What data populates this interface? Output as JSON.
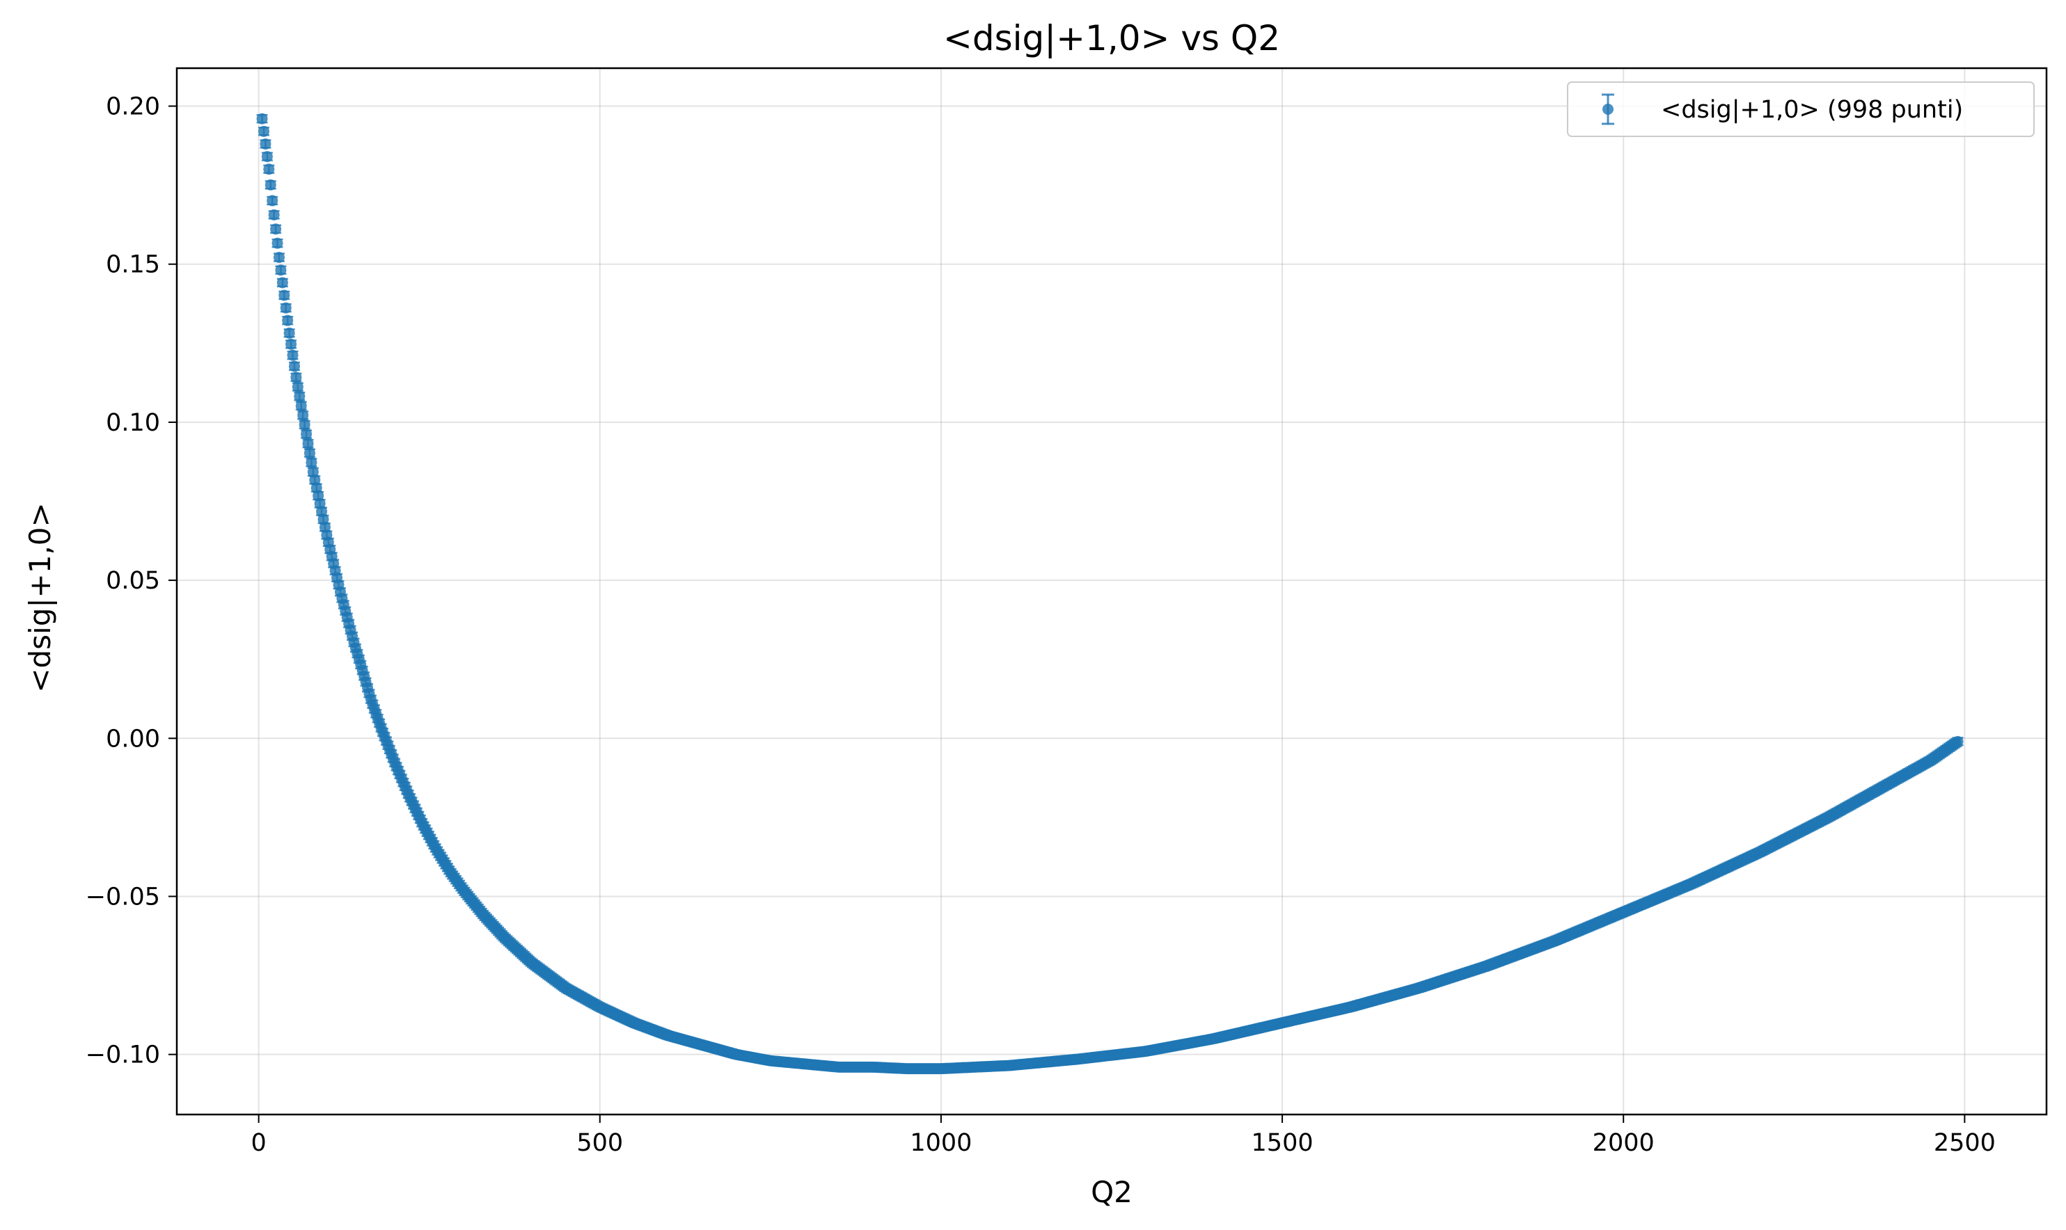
{
  "chart_data": {
    "type": "scatter",
    "title": "<dsig|+1,0> vs Q2",
    "xlabel": "Q2",
    "ylabel": "<dsig|+1,0>",
    "xlim": [
      -120,
      2620
    ],
    "ylim": [
      -0.119,
      0.212
    ],
    "xticks": [
      0,
      500,
      1000,
      1500,
      2000,
      2500
    ],
    "xtick_labels": [
      "0",
      "500",
      "1000",
      "1500",
      "2000",
      "2500"
    ],
    "yticks": [
      -0.1,
      -0.05,
      0.0,
      0.05,
      0.1,
      0.15,
      0.2
    ],
    "ytick_labels": [
      "−0.10",
      "−0.05",
      "0.00",
      "0.05",
      "0.10",
      "0.15",
      "0.20"
    ],
    "grid": true,
    "legend_position": "top-right",
    "series": [
      {
        "name": "<dsig|+1,0> (998 punti)",
        "color": "#1f77b4",
        "error_bars": true,
        "point_count": 998,
        "x": [
          5,
          10,
          15,
          20,
          25,
          30,
          35,
          40,
          45,
          50,
          55,
          60,
          65,
          70,
          75,
          80,
          90,
          100,
          110,
          120,
          130,
          140,
          150,
          165,
          180,
          200,
          220,
          240,
          260,
          280,
          300,
          330,
          360,
          400,
          450,
          500,
          550,
          600,
          650,
          700,
          750,
          800,
          850,
          900,
          950,
          975,
          1000,
          1050,
          1100,
          1150,
          1200,
          1300,
          1400,
          1500,
          1600,
          1700,
          1800,
          1900,
          2000,
          2100,
          2200,
          2300,
          2400,
          2450,
          2490
        ],
        "y": [
          0.196,
          0.188,
          0.18,
          0.17,
          0.161,
          0.152,
          0.144,
          0.136,
          0.128,
          0.121,
          0.114,
          0.108,
          0.102,
          0.096,
          0.09,
          0.084,
          0.074,
          0.064,
          0.055,
          0.046,
          0.038,
          0.03,
          0.023,
          0.012,
          0.003,
          -0.008,
          -0.018,
          -0.027,
          -0.035,
          -0.042,
          -0.048,
          -0.056,
          -0.063,
          -0.071,
          -0.079,
          -0.085,
          -0.09,
          -0.094,
          -0.097,
          -0.1,
          -0.102,
          -0.103,
          -0.104,
          -0.104,
          -0.1045,
          -0.1045,
          -0.1045,
          -0.104,
          -0.1035,
          -0.1025,
          -0.1015,
          -0.099,
          -0.095,
          -0.09,
          -0.085,
          -0.079,
          -0.072,
          -0.064,
          -0.055,
          -0.046,
          -0.036,
          -0.025,
          -0.013,
          -0.007,
          -0.001
        ],
        "yerr": 0.0012
      }
    ]
  }
}
